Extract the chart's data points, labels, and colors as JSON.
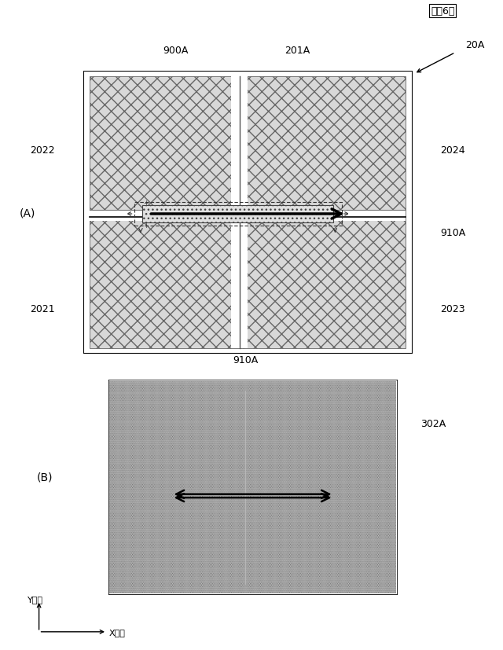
{
  "fig_label": "『囶6』",
  "panel_A_label": "(A)",
  "panel_B_label": "(B)",
  "bg_color": "#ffffff",
  "label_900A": "900A",
  "label_201A": "201A",
  "label_20A": "20A",
  "label_2022": "2022",
  "label_2024": "2024",
  "label_2021": "2021",
  "label_2023": "2023",
  "label_910A_A": "910A",
  "label_910A_B": "910A",
  "label_302A": "302A",
  "label_Ydir": "Y方向",
  "label_Xdir": "X方向",
  "fontsize": 9
}
